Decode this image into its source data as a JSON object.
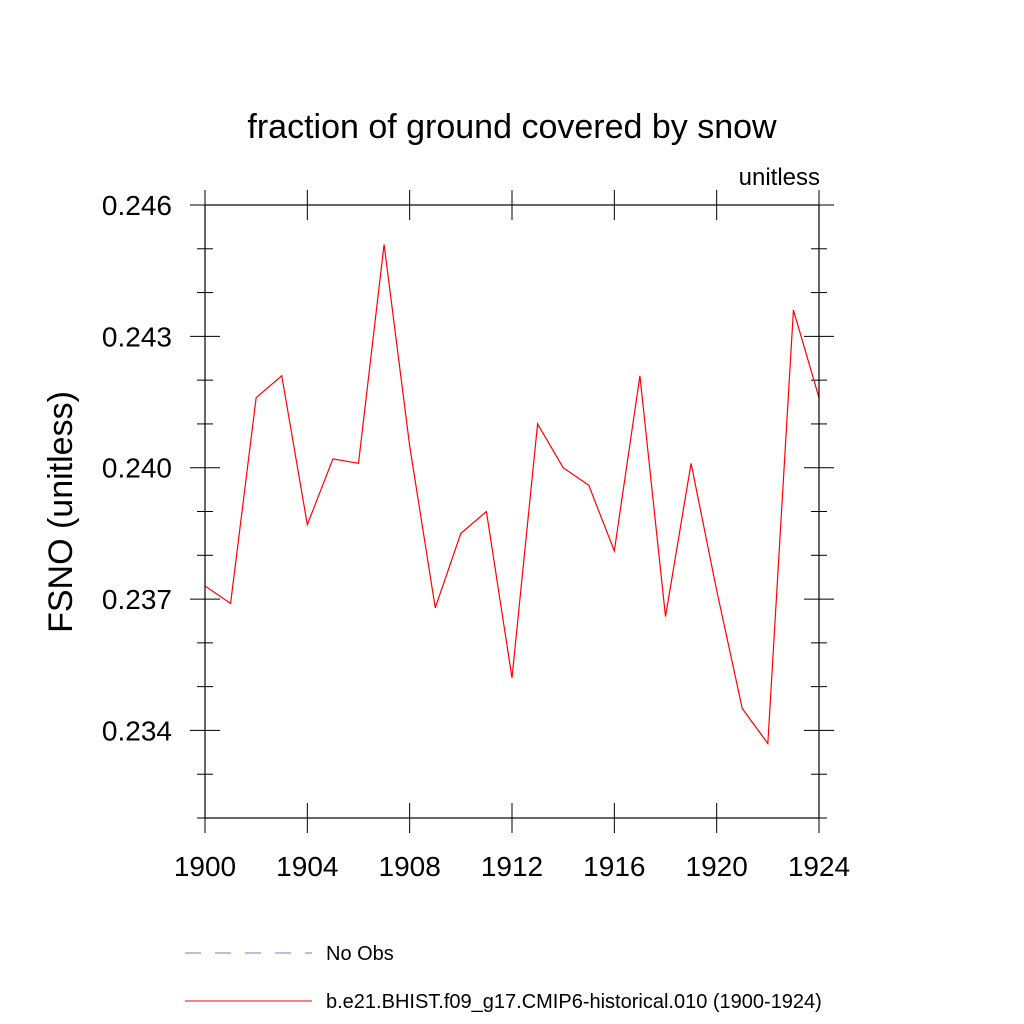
{
  "chart_data": {
    "type": "line",
    "title": "fraction of ground covered by snow",
    "units_label": "unitless",
    "xlabel": "",
    "ylabel": "FSNO  (unitless)",
    "xlim": [
      1900,
      1924
    ],
    "ylim": [
      0.232,
      0.246
    ],
    "x_ticks": [
      1900,
      1904,
      1908,
      1912,
      1916,
      1920,
      1924
    ],
    "x_tick_labels": [
      "1900",
      "1904",
      "1908",
      "1912",
      "1916",
      "1920",
      "1924"
    ],
    "y_ticks": [
      0.234,
      0.237,
      0.24,
      0.243,
      0.246
    ],
    "y_tick_labels": [
      "0.234",
      "0.237",
      "0.240",
      "0.243",
      "0.246"
    ],
    "y_minor_step": 0.001,
    "x": [
      1900,
      1901,
      1902,
      1903,
      1904,
      1905,
      1906,
      1907,
      1908,
      1909,
      1910,
      1911,
      1912,
      1913,
      1914,
      1915,
      1916,
      1917,
      1918,
      1919,
      1920,
      1921,
      1922,
      1923,
      1924
    ],
    "series": [
      {
        "name": "b.e21.BHIST.f09_g17.CMIP6-historical.010 (1900-1924)",
        "color": "#ff0000",
        "style": "solid",
        "values": [
          0.2373,
          0.2369,
          0.2416,
          0.2421,
          0.2387,
          0.2402,
          0.2401,
          0.2451,
          0.2405,
          0.2368,
          0.2385,
          0.239,
          0.2352,
          0.241,
          0.24,
          0.2396,
          0.2381,
          0.2421,
          0.2366,
          0.2401,
          0.2372,
          0.2345,
          0.2337,
          0.2436,
          0.2416
        ]
      }
    ],
    "legend": [
      {
        "label": "No Obs",
        "color": "#7b7bc8",
        "style": "dashed"
      },
      {
        "label": "b.e21.BHIST.f09_g17.CMIP6-historical.010 (1900-1924)",
        "color": "#ff0000",
        "style": "solid"
      }
    ],
    "legend_position": "bottom",
    "grid": false
  }
}
